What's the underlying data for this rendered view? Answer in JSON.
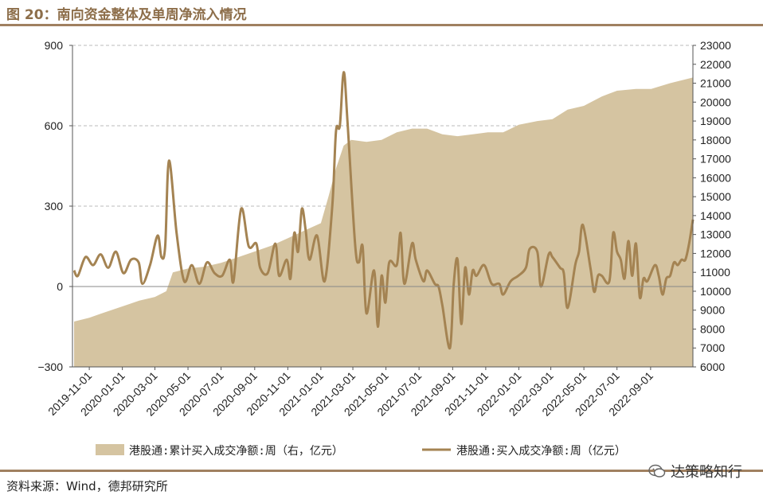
{
  "header": {
    "title": "图 20：南向资金整体及单周净流入情况"
  },
  "footer": {
    "source": "资料来源：Wind，德邦研究所",
    "watermark": "达策略知行"
  },
  "chart_data": {
    "type": "area+line",
    "colors": {
      "area": "#d5c4a1",
      "line": "#a48352",
      "grid": "#bbbbbb",
      "rule": "#a08060"
    },
    "grid": true,
    "legend_position": "bottom",
    "x_tick_labels": [
      "2019-11-01",
      "2020-01-01",
      "2020-03-01",
      "2020-05-01",
      "2020-07-01",
      "2020-09-01",
      "2020-11-01",
      "2021-01-01",
      "2021-03-01",
      "2021-05-01",
      "2021-07-01",
      "2021-09-01",
      "2021-11-01",
      "2022-01-01",
      "2022-03-01",
      "2022-05-01",
      "2022-07-01",
      "2022-09-01"
    ],
    "x_range": [
      "2019-10-01",
      "2022-11-18"
    ],
    "y_left": {
      "ticks": [
        900,
        600,
        300,
        0,
        -300
      ],
      "range": [
        -300,
        900
      ]
    },
    "y_right": {
      "ticks": [
        23000,
        22000,
        21000,
        20000,
        19000,
        18000,
        17000,
        16000,
        15000,
        14000,
        13000,
        12000,
        11000,
        10000,
        9000,
        8000,
        7000,
        6000
      ],
      "range": [
        6000,
        23000
      ]
    },
    "series": [
      {
        "name": "港股通:累计买入成交净额:周（右，亿元）",
        "type": "area",
        "axis": "right",
        "points": [
          [
            "2019-10-04",
            8400
          ],
          [
            "2019-11-01",
            8600
          ],
          [
            "2019-12-01",
            8900
          ],
          [
            "2020-01-01",
            9200
          ],
          [
            "2020-02-01",
            9500
          ],
          [
            "2020-03-01",
            9700
          ],
          [
            "2020-03-22",
            10000
          ],
          [
            "2020-04-03",
            11000
          ],
          [
            "2020-05-01",
            11200
          ],
          [
            "2020-06-01",
            11300
          ],
          [
            "2020-07-01",
            11500
          ],
          [
            "2020-08-01",
            11800
          ],
          [
            "2020-09-01",
            12100
          ],
          [
            "2020-10-01",
            12400
          ],
          [
            "2020-11-01",
            12800
          ],
          [
            "2020-12-01",
            13200
          ],
          [
            "2021-01-01",
            13600
          ],
          [
            "2021-01-15",
            15000
          ],
          [
            "2021-01-29",
            16500
          ],
          [
            "2021-02-12",
            17700
          ],
          [
            "2021-02-26",
            18000
          ],
          [
            "2021-03-26",
            17900
          ],
          [
            "2021-04-23",
            18000
          ],
          [
            "2021-05-21",
            18400
          ],
          [
            "2021-06-18",
            18600
          ],
          [
            "2021-07-16",
            18600
          ],
          [
            "2021-08-13",
            18300
          ],
          [
            "2021-09-10",
            18200
          ],
          [
            "2021-10-08",
            18300
          ],
          [
            "2021-11-05",
            18400
          ],
          [
            "2021-12-03",
            18400
          ],
          [
            "2022-01-01",
            18800
          ],
          [
            "2022-02-04",
            19000
          ],
          [
            "2022-03-04",
            19100
          ],
          [
            "2022-04-01",
            19600
          ],
          [
            "2022-05-01",
            19800
          ],
          [
            "2022-06-03",
            20300
          ],
          [
            "2022-07-01",
            20600
          ],
          [
            "2022-08-05",
            20700
          ],
          [
            "2022-09-02",
            20700
          ],
          [
            "2022-10-07",
            21000
          ],
          [
            "2022-11-18",
            21300
          ]
        ]
      },
      {
        "name": "港股通:买入成交净额:周（亿元）",
        "type": "line",
        "axis": "left",
        "points": [
          [
            "2019-10-04",
            60
          ],
          [
            "2019-10-11",
            40
          ],
          [
            "2019-10-25",
            110
          ],
          [
            "2019-11-08",
            80
          ],
          [
            "2019-11-22",
            120
          ],
          [
            "2019-12-06",
            70
          ],
          [
            "2019-12-20",
            130
          ],
          [
            "2020-01-03",
            50
          ],
          [
            "2020-01-17",
            100
          ],
          [
            "2020-01-31",
            90
          ],
          [
            "2020-02-07",
            10
          ],
          [
            "2020-02-21",
            80
          ],
          [
            "2020-03-06",
            190
          ],
          [
            "2020-03-13",
            110
          ],
          [
            "2020-03-20",
            150
          ],
          [
            "2020-03-27",
            470
          ],
          [
            "2020-04-10",
            200
          ],
          [
            "2020-04-24",
            20
          ],
          [
            "2020-05-08",
            80
          ],
          [
            "2020-05-22",
            10
          ],
          [
            "2020-06-05",
            90
          ],
          [
            "2020-06-19",
            50
          ],
          [
            "2020-07-03",
            40
          ],
          [
            "2020-07-17",
            100
          ],
          [
            "2020-07-24",
            20
          ],
          [
            "2020-08-07",
            290
          ],
          [
            "2020-08-21",
            150
          ],
          [
            "2020-09-04",
            160
          ],
          [
            "2020-09-11",
            70
          ],
          [
            "2020-09-25",
            50
          ],
          [
            "2020-10-09",
            160
          ],
          [
            "2020-10-16",
            40
          ],
          [
            "2020-10-30",
            100
          ],
          [
            "2020-11-06",
            30
          ],
          [
            "2020-11-13",
            200
          ],
          [
            "2020-11-20",
            130
          ],
          [
            "2020-11-27",
            290
          ],
          [
            "2020-12-04",
            210
          ],
          [
            "2020-12-11",
            100
          ],
          [
            "2020-12-25",
            190
          ],
          [
            "2021-01-08",
            20
          ],
          [
            "2021-01-22",
            300
          ],
          [
            "2021-01-29",
            580
          ],
          [
            "2021-02-05",
            600
          ],
          [
            "2021-02-12",
            800
          ],
          [
            "2021-02-19",
            620
          ],
          [
            "2021-03-05",
            160
          ],
          [
            "2021-03-12",
            90
          ],
          [
            "2021-03-19",
            150
          ],
          [
            "2021-03-26",
            -100
          ],
          [
            "2021-04-09",
            60
          ],
          [
            "2021-04-16",
            -150
          ],
          [
            "2021-04-23",
            40
          ],
          [
            "2021-04-30",
            -60
          ],
          [
            "2021-05-07",
            90
          ],
          [
            "2021-05-21",
            80
          ],
          [
            "2021-05-28",
            200
          ],
          [
            "2021-06-04",
            10
          ],
          [
            "2021-06-18",
            160
          ],
          [
            "2021-06-25",
            100
          ],
          [
            "2021-07-09",
            20
          ],
          [
            "2021-07-16",
            60
          ],
          [
            "2021-07-30",
            10
          ],
          [
            "2021-08-06",
            0
          ],
          [
            "2021-08-13",
            -70
          ],
          [
            "2021-08-27",
            -230
          ],
          [
            "2021-09-03",
            10
          ],
          [
            "2021-09-10",
            100
          ],
          [
            "2021-09-17",
            -140
          ],
          [
            "2021-09-24",
            70
          ],
          [
            "2021-10-01",
            -30
          ],
          [
            "2021-10-08",
            60
          ],
          [
            "2021-10-15",
            40
          ],
          [
            "2021-10-29",
            80
          ],
          [
            "2021-11-12",
            10
          ],
          [
            "2021-11-26",
            10
          ],
          [
            "2021-12-03",
            -30
          ],
          [
            "2021-12-17",
            20
          ],
          [
            "2021-12-31",
            40
          ],
          [
            "2022-01-14",
            70
          ],
          [
            "2022-01-21",
            140
          ],
          [
            "2022-02-04",
            130
          ],
          [
            "2022-02-11",
            0
          ],
          [
            "2022-02-25",
            120
          ],
          [
            "2022-03-04",
            110
          ],
          [
            "2022-03-18",
            70
          ],
          [
            "2022-03-25",
            50
          ],
          [
            "2022-04-01",
            -80
          ],
          [
            "2022-04-15",
            80
          ],
          [
            "2022-04-22",
            130
          ],
          [
            "2022-04-29",
            230
          ],
          [
            "2022-05-13",
            70
          ],
          [
            "2022-05-20",
            -20
          ],
          [
            "2022-05-27",
            40
          ],
          [
            "2022-06-03",
            40
          ],
          [
            "2022-06-17",
            20
          ],
          [
            "2022-06-24",
            200
          ],
          [
            "2022-07-01",
            130
          ],
          [
            "2022-07-08",
            100
          ],
          [
            "2022-07-15",
            30
          ],
          [
            "2022-07-22",
            170
          ],
          [
            "2022-07-29",
            40
          ],
          [
            "2022-08-05",
            160
          ],
          [
            "2022-08-12",
            -40
          ],
          [
            "2022-08-19",
            30
          ],
          [
            "2022-08-26",
            20
          ],
          [
            "2022-09-09",
            80
          ],
          [
            "2022-09-16",
            40
          ],
          [
            "2022-09-23",
            -30
          ],
          [
            "2022-09-30",
            30
          ],
          [
            "2022-10-07",
            40
          ],
          [
            "2022-10-14",
            90
          ],
          [
            "2022-10-21",
            80
          ],
          [
            "2022-10-28",
            100
          ],
          [
            "2022-11-04",
            100
          ],
          [
            "2022-11-11",
            160
          ],
          [
            "2022-11-18",
            250
          ]
        ]
      }
    ]
  }
}
